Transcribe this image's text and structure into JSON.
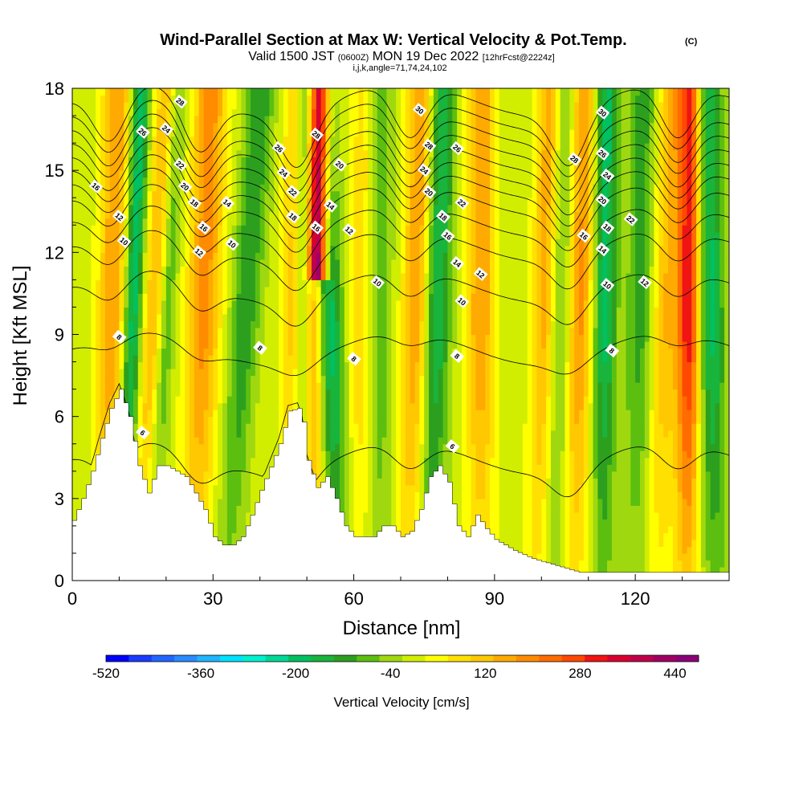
{
  "chart_data": {
    "type": "heatmap",
    "title": "Wind-Parallel Section at Max W: Vertical Velocity & Pot.Temp.",
    "title_mark": "(C)",
    "subtitle_parts": [
      "Valid 1500 JST ",
      "(0600Z)",
      " MON 19 Dec 2022 ",
      "[12hrFcst@2224z]"
    ],
    "subtitle2": "i,j,k,angle=71,74,24,102",
    "xlabel": "Distance [nm]",
    "ylabel": "Height [Kft MSL]",
    "xlim": [
      0,
      140
    ],
    "ylim": [
      0,
      18
    ],
    "x_ticks": [
      "0",
      "30",
      "60",
      "90",
      "120"
    ],
    "y_ticks": [
      "0",
      "3",
      "6",
      "9",
      "12",
      "15",
      "18"
    ],
    "colorbar": {
      "label": "Vertical Velocity [cm/s]",
      "min": -520,
      "max": 480,
      "step": 40,
      "tick_labels": [
        "-520",
        "-360",
        "-200",
        "-40",
        "120",
        "280",
        "440"
      ],
      "colors": [
        "#0000ff",
        "#1a3cff",
        "#2266ff",
        "#2a8cff",
        "#22b4ff",
        "#00e0ff",
        "#00f0d0",
        "#00d896",
        "#00c060",
        "#18b43c",
        "#2ca01e",
        "#5cbf10",
        "#a0d810",
        "#d2ee00",
        "#ffff00",
        "#ffe000",
        "#ffc800",
        "#ffaa00",
        "#ff8c00",
        "#ff6c00",
        "#ff4800",
        "#f01414",
        "#d80030",
        "#c0004c",
        "#a00064",
        "#8c0078"
      ]
    },
    "terrain": {
      "x": [
        0,
        2,
        4,
        6,
        8,
        10,
        12,
        14,
        16,
        18,
        20,
        24,
        28,
        30,
        32,
        34,
        36,
        38,
        40,
        44,
        46,
        48,
        49,
        50,
        52,
        54,
        56,
        58,
        60,
        62,
        64,
        66,
        68,
        70,
        72,
        74,
        76,
        78,
        80,
        82,
        84,
        86,
        88,
        90,
        94,
        98,
        102,
        106,
        108,
        112,
        120,
        130,
        140
      ],
      "height_kft": [
        2.2,
        3.0,
        4.0,
        5.2,
        6.3,
        7.0,
        6.0,
        4.2,
        3.2,
        4.2,
        4.2,
        3.8,
        2.6,
        1.6,
        1.3,
        1.3,
        1.6,
        2.4,
        3.3,
        5.0,
        6.2,
        6.3,
        5.8,
        4.4,
        3.4,
        3.8,
        3.0,
        2.0,
        1.6,
        1.6,
        1.6,
        2.0,
        2.0,
        1.6,
        1.8,
        2.6,
        3.8,
        4.2,
        3.6,
        2.0,
        1.6,
        2.4,
        1.9,
        1.5,
        1.1,
        0.8,
        0.6,
        0.4,
        0.3,
        0.3,
        0.3,
        0.3,
        0.3
      ]
    },
    "vertical_velocity": {
      "background_cm_s": 20,
      "bands": [
        {
          "x_base": 7,
          "value": 180,
          "width_nm": 3.0,
          "lean_nm_per_kft": 0.15
        },
        {
          "x_base": 11,
          "value": -220,
          "width_nm": 2.0,
          "lean_nm_per_kft": 0.2
        },
        {
          "x_base": 14,
          "value": 160,
          "width_nm": 2.5,
          "lean_nm_per_kft": 0.35
        },
        {
          "x_base": 17,
          "value": -120,
          "width_nm": 2.0,
          "lean_nm_per_kft": 0.3
        },
        {
          "x_base": 26,
          "value": 200,
          "width_nm": 3.5,
          "lean_nm_per_kft": 0.2
        },
        {
          "x_base": 33,
          "value": -140,
          "width_nm": 3.0,
          "lean_nm_per_kft": 0.4
        },
        {
          "x_base": 47,
          "value": 160,
          "width_nm": 2.5,
          "lean_nm_per_kft": 0.05
        },
        {
          "x_base": 49,
          "value": -240,
          "width_nm": 2.0,
          "lean_nm_per_kft": 0.02
        },
        {
          "x_base": 51,
          "value": 240,
          "width_nm": 2.5,
          "lean_nm_per_kft": 0.02
        },
        {
          "x_base": 52,
          "value": 420,
          "width_nm": 2.0,
          "lean_nm_per_kft": 0.05,
          "z_min_kft": 11
        },
        {
          "x_base": 57,
          "value": -220,
          "width_nm": 3.0,
          "lean_nm_per_kft": -0.25
        },
        {
          "x_base": 61,
          "value": 120,
          "width_nm": 3.0,
          "lean_nm_per_kft": 0.1
        },
        {
          "x_base": 65,
          "value": -120,
          "width_nm": 3.0,
          "lean_nm_per_kft": 0.0
        },
        {
          "x_base": 72,
          "value": 200,
          "width_nm": 3.0,
          "lean_nm_per_kft": 0.15
        },
        {
          "x_base": 76,
          "value": -200,
          "width_nm": 3.0,
          "lean_nm_per_kft": 0.15
        },
        {
          "x_base": 87,
          "value": 180,
          "width_nm": 3.0,
          "lean_nm_per_kft": 0.0
        },
        {
          "x_base": 99,
          "value": 160,
          "width_nm": 2.5,
          "lean_nm_per_kft": 0.15
        },
        {
          "x_base": 103,
          "value": -120,
          "width_nm": 2.5,
          "lean_nm_per_kft": 0.15
        },
        {
          "x_base": 107,
          "value": 200,
          "width_nm": 3.0,
          "lean_nm_per_kft": 0.1
        },
        {
          "x_base": 113,
          "value": -200,
          "width_nm": 2.5,
          "lean_nm_per_kft": 0.05
        },
        {
          "x_base": 120,
          "value": -120,
          "width_nm": 3.0,
          "lean_nm_per_kft": 0.1
        },
        {
          "x_base": 125,
          "value": 140,
          "width_nm": 3.0,
          "lean_nm_per_kft": 0.15
        },
        {
          "x_base": 131,
          "value": 340,
          "width_nm": 2.5,
          "lean_nm_per_kft": 0.05
        },
        {
          "x_base": 137,
          "value": -200,
          "width_nm": 3.0,
          "lean_nm_per_kft": -0.1
        }
      ]
    },
    "potential_temperature": {
      "contours": [
        {
          "label": "6",
          "base_kft": 4.5,
          "amp_kft": 1.0
        },
        {
          "label": "8",
          "base_kft": 8.5,
          "amp_kft": 0.5
        },
        {
          "label": "10",
          "base_kft": 10.8,
          "amp_kft": 1.0
        },
        {
          "label": "12",
          "base_kft": 12.3,
          "amp_kft": 1.2
        },
        {
          "label": "14",
          "base_kft": 13.2,
          "amp_kft": 1.3
        },
        {
          "label": "16",
          "base_kft": 14.0,
          "amp_kft": 1.5
        },
        {
          "label": "18",
          "base_kft": 14.6,
          "amp_kft": 1.6
        },
        {
          "label": "20",
          "base_kft": 15.1,
          "amp_kft": 1.7
        },
        {
          "label": "22",
          "base_kft": 15.6,
          "amp_kft": 1.8
        },
        {
          "label": "24",
          "base_kft": 16.1,
          "amp_kft": 1.8
        },
        {
          "label": "26",
          "base_kft": 16.6,
          "amp_kft": 1.9
        },
        {
          "label": "28",
          "base_kft": 17.1,
          "amp_kft": 1.9
        },
        {
          "label": "30",
          "base_kft": 17.6,
          "amp_kft": 2.0
        }
      ],
      "label_positions": [
        {
          "label": "28",
          "x": 23,
          "z": 17.5
        },
        {
          "label": "26",
          "x": 15,
          "z": 16.4
        },
        {
          "label": "24",
          "x": 20,
          "z": 16.5
        },
        {
          "label": "22",
          "x": 23,
          "z": 15.2
        },
        {
          "label": "20",
          "x": 24,
          "z": 14.4
        },
        {
          "label": "18",
          "x": 26,
          "z": 13.8
        },
        {
          "label": "16",
          "x": 5,
          "z": 14.4
        },
        {
          "label": "12",
          "x": 10,
          "z": 13.3
        },
        {
          "label": "10",
          "x": 11,
          "z": 12.4
        },
        {
          "label": "14",
          "x": 33,
          "z": 13.8
        },
        {
          "label": "16",
          "x": 28,
          "z": 12.9
        },
        {
          "label": "12",
          "x": 27,
          "z": 12.0
        },
        {
          "label": "10",
          "x": 34,
          "z": 12.3
        },
        {
          "label": "26",
          "x": 44,
          "z": 15.8
        },
        {
          "label": "24",
          "x": 45,
          "z": 14.9
        },
        {
          "label": "22",
          "x": 47,
          "z": 14.2
        },
        {
          "label": "18",
          "x": 47,
          "z": 13.3
        },
        {
          "label": "16",
          "x": 52,
          "z": 12.9
        },
        {
          "label": "28",
          "x": 52,
          "z": 16.3
        },
        {
          "label": "20",
          "x": 57,
          "z": 15.2
        },
        {
          "label": "14",
          "x": 55,
          "z": 13.7
        },
        {
          "label": "12",
          "x": 59,
          "z": 12.8
        },
        {
          "label": "10",
          "x": 65,
          "z": 10.9
        },
        {
          "label": "30",
          "x": 74,
          "z": 17.2
        },
        {
          "label": "28",
          "x": 76,
          "z": 15.9
        },
        {
          "label": "26",
          "x": 82,
          "z": 15.8
        },
        {
          "label": "24",
          "x": 75,
          "z": 15.0
        },
        {
          "label": "20",
          "x": 76,
          "z": 14.2
        },
        {
          "label": "22",
          "x": 83,
          "z": 13.8
        },
        {
          "label": "18",
          "x": 79,
          "z": 13.3
        },
        {
          "label": "16",
          "x": 80,
          "z": 12.6
        },
        {
          "label": "14",
          "x": 82,
          "z": 11.6
        },
        {
          "label": "12",
          "x": 87,
          "z": 11.2
        },
        {
          "label": "10",
          "x": 83,
          "z": 10.2
        },
        {
          "label": "8",
          "x": 82,
          "z": 8.2
        },
        {
          "label": "8",
          "x": 60,
          "z": 8.1
        },
        {
          "label": "8",
          "x": 40,
          "z": 8.5
        },
        {
          "label": "8",
          "x": 10,
          "z": 8.9
        },
        {
          "label": "6",
          "x": 15,
          "z": 5.4
        },
        {
          "label": "6",
          "x": 81,
          "z": 4.9
        },
        {
          "label": "28",
          "x": 107,
          "z": 15.4
        },
        {
          "label": "30",
          "x": 113,
          "z": 17.1
        },
        {
          "label": "26",
          "x": 113,
          "z": 15.6
        },
        {
          "label": "24",
          "x": 114,
          "z": 14.8
        },
        {
          "label": "20",
          "x": 113,
          "z": 13.9
        },
        {
          "label": "18",
          "x": 114,
          "z": 12.9
        },
        {
          "label": "16",
          "x": 109,
          "z": 12.6
        },
        {
          "label": "22",
          "x": 119,
          "z": 13.2
        },
        {
          "label": "14",
          "x": 113,
          "z": 12.1
        },
        {
          "label": "10",
          "x": 114,
          "z": 10.8
        },
        {
          "label": "12",
          "x": 122,
          "z": 10.9
        },
        {
          "label": "8",
          "x": 115,
          "z": 8.4
        }
      ]
    }
  }
}
